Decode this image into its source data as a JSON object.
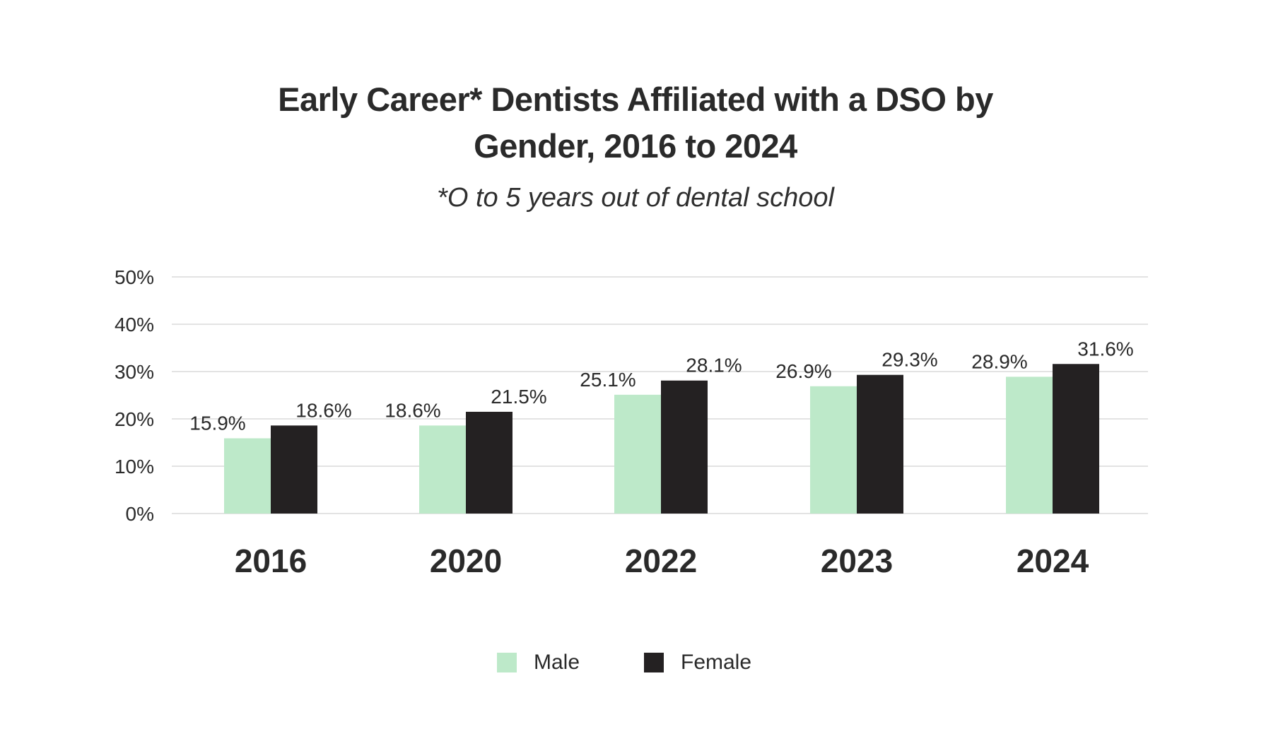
{
  "chart_data": {
    "type": "bar",
    "title_lines": [
      "Early Career* Dentists Affiliated with a DSO by",
      "Gender, 2016 to 2024"
    ],
    "subtitle": "*O to 5 years out of dental school",
    "categories": [
      "2016",
      "2020",
      "2022",
      "2023",
      "2024"
    ],
    "series": [
      {
        "name": "Male",
        "color": "#bde9c9",
        "values": [
          15.9,
          18.6,
          25.1,
          26.9,
          28.9
        ],
        "labels": [
          "15.9%",
          "18.6%",
          "25.1%",
          "26.9%",
          "28.9%"
        ]
      },
      {
        "name": "Female",
        "color": "#242122",
        "values": [
          18.6,
          21.5,
          28.1,
          29.3,
          31.6
        ],
        "labels": [
          "18.6%",
          "21.5%",
          "28.1%",
          "29.3%",
          "31.6%"
        ]
      }
    ],
    "ylim": [
      0,
      50
    ],
    "yticks": [
      0,
      10,
      20,
      30,
      40,
      50
    ],
    "ytick_labels": [
      "0%",
      "10%",
      "20%",
      "30%",
      "40%",
      "50%"
    ],
    "xlabel": "",
    "ylabel": "",
    "grid": true,
    "legend_position": "bottom-center",
    "gridline_color": "#e3e3e3"
  }
}
